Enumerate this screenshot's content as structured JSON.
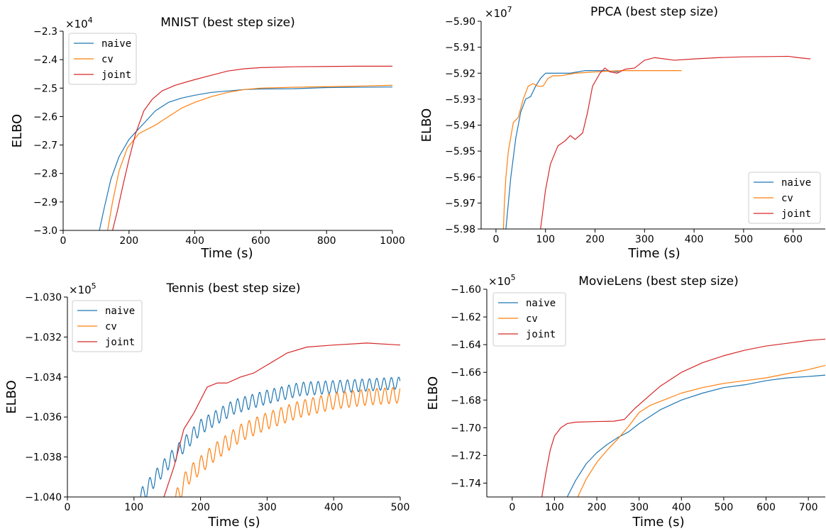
{
  "colors": {
    "naive": "#1f77b4",
    "cv": "#ff7f0e",
    "joint": "#d62728"
  },
  "chart_data": [
    {
      "type": "line",
      "title": "MNIST (best step size)",
      "xlabel": "Time (s)",
      "ylabel": "ELBO",
      "multiplier": "×10",
      "exponent": "4",
      "xlim": [
        0,
        1000
      ],
      "ylim": [
        -3.0,
        -2.3
      ],
      "xticks": [
        0,
        200,
        400,
        600,
        800,
        1000
      ],
      "yticks": [
        -3.0,
        -2.9,
        -2.8,
        -2.7,
        -2.6,
        -2.5,
        -2.4,
        -2.3
      ],
      "ytick_labels": [
        "−3.0",
        "−2.9",
        "−2.8",
        "−2.7",
        "−2.6",
        "−2.5",
        "−2.4",
        "−2.3"
      ],
      "legend_loc": "upper-left",
      "series": [
        {
          "name": "naive",
          "color": "#1f77b4",
          "points": [
            [
              110,
              -3.0
            ],
            [
              125,
              -2.92
            ],
            [
              145,
              -2.82
            ],
            [
              170,
              -2.74
            ],
            [
              200,
              -2.68
            ],
            [
              240,
              -2.63
            ],
            [
              280,
              -2.58
            ],
            [
              320,
              -2.55
            ],
            [
              360,
              -2.535
            ],
            [
              400,
              -2.525
            ],
            [
              450,
              -2.515
            ],
            [
              500,
              -2.51
            ],
            [
              550,
              -2.505
            ],
            [
              600,
              -2.503
            ],
            [
              700,
              -2.502
            ],
            [
              800,
              -2.498
            ],
            [
              900,
              -2.497
            ],
            [
              1000,
              -2.496
            ]
          ]
        },
        {
          "name": "cv",
          "color": "#ff7f0e",
          "points": [
            [
              135,
              -3.0
            ],
            [
              150,
              -2.9
            ],
            [
              170,
              -2.79
            ],
            [
              195,
              -2.71
            ],
            [
              230,
              -2.66
            ],
            [
              280,
              -2.63
            ],
            [
              320,
              -2.6
            ],
            [
              360,
              -2.57
            ],
            [
              400,
              -2.55
            ],
            [
              450,
              -2.53
            ],
            [
              500,
              -2.515
            ],
            [
              550,
              -2.505
            ],
            [
              600,
              -2.5
            ],
            [
              700,
              -2.497
            ],
            [
              800,
              -2.495
            ],
            [
              900,
              -2.493
            ],
            [
              1000,
              -2.49
            ]
          ]
        },
        {
          "name": "joint",
          "color": "#d62728",
          "points": [
            [
              150,
              -3.0
            ],
            [
              165,
              -2.93
            ],
            [
              180,
              -2.85
            ],
            [
              200,
              -2.75
            ],
            [
              220,
              -2.66
            ],
            [
              245,
              -2.58
            ],
            [
              270,
              -2.54
            ],
            [
              300,
              -2.51
            ],
            [
              340,
              -2.49
            ],
            [
              400,
              -2.47
            ],
            [
              450,
              -2.455
            ],
            [
              500,
              -2.44
            ],
            [
              550,
              -2.432
            ],
            [
              600,
              -2.428
            ],
            [
              700,
              -2.425
            ],
            [
              800,
              -2.424
            ],
            [
              900,
              -2.423
            ],
            [
              1000,
              -2.423
            ]
          ]
        }
      ]
    },
    {
      "type": "line",
      "title": "PPCA (best step size)",
      "xlabel": "Time (s)",
      "ylabel": "ELBO",
      "multiplier": "×10",
      "exponent": "7",
      "xlim": [
        -30,
        665
      ],
      "ylim": [
        -5.98,
        -5.9
      ],
      "xticks": [
        0,
        100,
        200,
        300,
        400,
        500,
        600
      ],
      "yticks": [
        -5.98,
        -5.97,
        -5.96,
        -5.95,
        -5.94,
        -5.93,
        -5.92,
        -5.91,
        -5.9
      ],
      "ytick_labels": [
        "−5.98",
        "−5.97",
        "−5.96",
        "−5.95",
        "−5.94",
        "−5.93",
        "−5.92",
        "−5.91",
        "−5.90"
      ],
      "legend_loc": "lower-right",
      "series": [
        {
          "name": "naive",
          "color": "#1f77b4",
          "points": [
            [
              20,
              -5.98
            ],
            [
              25,
              -5.97
            ],
            [
              30,
              -5.96
            ],
            [
              40,
              -5.945
            ],
            [
              50,
              -5.935
            ],
            [
              60,
              -5.93
            ],
            [
              70,
              -5.929
            ],
            [
              80,
              -5.925
            ],
            [
              90,
              -5.922
            ],
            [
              100,
              -5.92
            ],
            [
              120,
              -5.92
            ],
            [
              150,
              -5.92
            ],
            [
              180,
              -5.919
            ],
            [
              200,
              -5.919
            ],
            [
              220,
              -5.919
            ],
            [
              250,
              -5.9195
            ]
          ]
        },
        {
          "name": "cv",
          "color": "#ff7f0e",
          "points": [
            [
              15,
              -5.98
            ],
            [
              17,
              -5.97
            ],
            [
              20,
              -5.96
            ],
            [
              25,
              -5.95
            ],
            [
              35,
              -5.939
            ],
            [
              45,
              -5.937
            ],
            [
              55,
              -5.93
            ],
            [
              65,
              -5.925
            ],
            [
              75,
              -5.924
            ],
            [
              85,
              -5.925
            ],
            [
              95,
              -5.925
            ],
            [
              105,
              -5.922
            ],
            [
              115,
              -5.921
            ],
            [
              130,
              -5.921
            ],
            [
              160,
              -5.92
            ],
            [
              200,
              -5.9195
            ],
            [
              250,
              -5.919
            ],
            [
              300,
              -5.919
            ],
            [
              375,
              -5.919
            ]
          ]
        },
        {
          "name": "joint",
          "color": "#d62728",
          "points": [
            [
              90,
              -5.98
            ],
            [
              100,
              -5.965
            ],
            [
              110,
              -5.955
            ],
            [
              125,
              -5.948
            ],
            [
              140,
              -5.946
            ],
            [
              150,
              -5.944
            ],
            [
              160,
              -5.9455
            ],
            [
              175,
              -5.943
            ],
            [
              185,
              -5.935
            ],
            [
              195,
              -5.925
            ],
            [
              210,
              -5.92
            ],
            [
              220,
              -5.918
            ],
            [
              230,
              -5.9195
            ],
            [
              245,
              -5.92
            ],
            [
              260,
              -5.9185
            ],
            [
              280,
              -5.918
            ],
            [
              300,
              -5.915
            ],
            [
              320,
              -5.914
            ],
            [
              360,
              -5.915
            ],
            [
              400,
              -5.9145
            ],
            [
              450,
              -5.914
            ],
            [
              500,
              -5.9137
            ],
            [
              550,
              -5.9136
            ],
            [
              590,
              -5.9135
            ],
            [
              610,
              -5.914
            ],
            [
              635,
              -5.9145
            ]
          ]
        }
      ]
    },
    {
      "type": "line",
      "title": "Tennis (best step size)",
      "xlabel": "Time (s)",
      "ylabel": "ELBO",
      "multiplier": "×10",
      "exponent": "5",
      "xlim": [
        0,
        500
      ],
      "ylim": [
        -1.04,
        -1.03
      ],
      "xticks": [
        0,
        100,
        200,
        300,
        400,
        500
      ],
      "yticks": [
        -1.04,
        -1.038,
        -1.036,
        -1.034,
        -1.032,
        -1.03
      ],
      "ytick_labels": [
        "−1.040",
        "−1.038",
        "−1.036",
        "−1.034",
        "−1.032",
        "−1.030"
      ],
      "legend_loc": "upper-left",
      "series": [
        {
          "name": "naive",
          "color": "#1f77b4",
          "start": 110,
          "end": 500,
          "base_points": [
            [
              110,
              -1.04
            ],
            [
              150,
              -1.0383
            ],
            [
              200,
              -1.0365
            ],
            [
              250,
              -1.0355
            ],
            [
              300,
              -1.035
            ],
            [
              350,
              -1.0346
            ],
            [
              400,
              -1.0345
            ],
            [
              450,
              -1.0344
            ],
            [
              500,
              -1.0343
            ]
          ],
          "osc_period": 11,
          "osc_amp_start": 0.0004,
          "osc_amp_end": 0.0003
        },
        {
          "name": "cv",
          "color": "#ff7f0e",
          "start": 150,
          "end": 500,
          "base_points": [
            [
              150,
              -1.041
            ],
            [
              180,
              -1.039
            ],
            [
              220,
              -1.0378
            ],
            [
              260,
              -1.0368
            ],
            [
              300,
              -1.0362
            ],
            [
              350,
              -1.0356
            ],
            [
              400,
              -1.0352
            ],
            [
              450,
              -1.035
            ],
            [
              500,
              -1.0349
            ]
          ],
          "osc_period": 12,
          "osc_amp_start": 0.00045,
          "osc_amp_end": 0.0004
        },
        {
          "name": "joint",
          "color": "#d62728",
          "points": [
            [
              145,
              -1.04
            ],
            [
              160,
              -1.0385
            ],
            [
              175,
              -1.0366
            ],
            [
              190,
              -1.0358
            ],
            [
              210,
              -1.0345
            ],
            [
              225,
              -1.0343
            ],
            [
              240,
              -1.0343
            ],
            [
              260,
              -1.034
            ],
            [
              280,
              -1.0338
            ],
            [
              300,
              -1.0334
            ],
            [
              330,
              -1.0328
            ],
            [
              360,
              -1.0325
            ],
            [
              400,
              -1.0324
            ],
            [
              450,
              -1.0323
            ],
            [
              500,
              -1.0324
            ]
          ]
        }
      ]
    },
    {
      "type": "line",
      "title": "MovieLens (best step size)",
      "xlabel": "Time (s)",
      "ylabel": "ELBO",
      "multiplier": "×10",
      "exponent": "5",
      "xlim": [
        -60,
        740
      ],
      "ylim": [
        -1.75,
        -1.6
      ],
      "xticks": [
        0,
        100,
        200,
        300,
        400,
        500,
        600,
        700
      ],
      "yticks": [
        -1.74,
        -1.72,
        -1.7,
        -1.68,
        -1.66,
        -1.64,
        -1.62,
        -1.6
      ],
      "ytick_labels": [
        "−1.74",
        "−1.72",
        "−1.70",
        "−1.68",
        "−1.66",
        "−1.64",
        "−1.62",
        "−1.60"
      ],
      "legend_loc": "upper-left",
      "series": [
        {
          "name": "naive",
          "color": "#1f77b4",
          "points": [
            [
              130,
              -1.75
            ],
            [
              150,
              -1.738
            ],
            [
              175,
              -1.726
            ],
            [
              200,
              -1.718
            ],
            [
              225,
              -1.712
            ],
            [
              250,
              -1.707
            ],
            [
              275,
              -1.703
            ],
            [
              300,
              -1.697
            ],
            [
              325,
              -1.692
            ],
            [
              350,
              -1.687
            ],
            [
              400,
              -1.68
            ],
            [
              450,
              -1.675
            ],
            [
              500,
              -1.671
            ],
            [
              550,
              -1.669
            ],
            [
              600,
              -1.666
            ],
            [
              650,
              -1.664
            ],
            [
              700,
              -1.663
            ],
            [
              740,
              -1.662
            ]
          ]
        },
        {
          "name": "cv",
          "color": "#ff7f0e",
          "points": [
            [
              155,
              -1.75
            ],
            [
              175,
              -1.737
            ],
            [
              200,
              -1.725
            ],
            [
              225,
              -1.716
            ],
            [
              250,
              -1.708
            ],
            [
              275,
              -1.699
            ],
            [
              300,
              -1.689
            ],
            [
              325,
              -1.684
            ],
            [
              350,
              -1.681
            ],
            [
              400,
              -1.675
            ],
            [
              450,
              -1.671
            ],
            [
              500,
              -1.668
            ],
            [
              550,
              -1.666
            ],
            [
              600,
              -1.664
            ],
            [
              650,
              -1.661
            ],
            [
              700,
              -1.658
            ],
            [
              740,
              -1.655
            ]
          ]
        },
        {
          "name": "joint",
          "color": "#d62728",
          "points": [
            [
              70,
              -1.75
            ],
            [
              80,
              -1.732
            ],
            [
              90,
              -1.716
            ],
            [
              100,
              -1.706
            ],
            [
              115,
              -1.7
            ],
            [
              130,
              -1.697
            ],
            [
              150,
              -1.696
            ],
            [
              200,
              -1.6955
            ],
            [
              240,
              -1.6953
            ],
            [
              265,
              -1.694
            ],
            [
              290,
              -1.686
            ],
            [
              320,
              -1.678
            ],
            [
              350,
              -1.67
            ],
            [
              400,
              -1.66
            ],
            [
              450,
              -1.653
            ],
            [
              500,
              -1.648
            ],
            [
              550,
              -1.644
            ],
            [
              600,
              -1.641
            ],
            [
              650,
              -1.639
            ],
            [
              700,
              -1.637
            ],
            [
              740,
              -1.636
            ]
          ]
        }
      ]
    }
  ]
}
